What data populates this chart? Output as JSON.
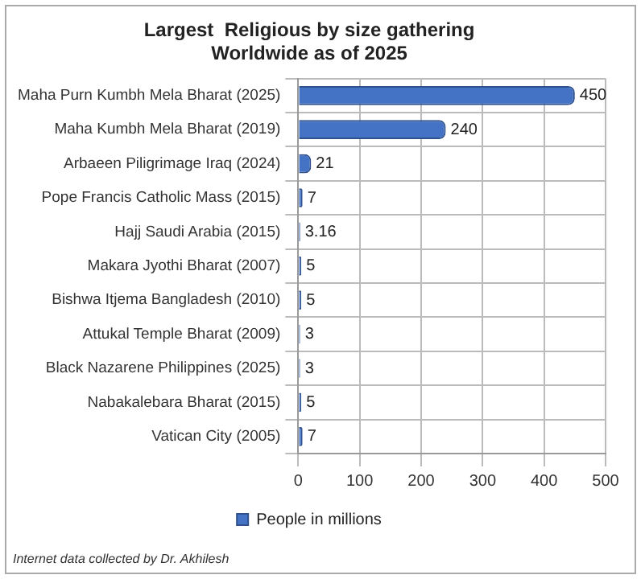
{
  "chart_data": {
    "type": "bar",
    "orientation": "horizontal",
    "title": "Largest  Religious by size gathering\nWorldwide as of 2025",
    "categories": [
      "Maha Purn Kumbh Mela Bharat (2025)",
      "Maha Kumbh Mela Bharat (2019)",
      "Arbaeen Piligrimage Iraq (2024)",
      "Pope Francis Catholic Mass (2015)",
      "Hajj Saudi Arabia (2015)",
      "Makara Jyothi Bharat (2007)",
      "Bishwa Itjema Bangladesh (2010)",
      "Attukal Temple Bharat (2009)",
      "Black Nazarene Philippines (2025)",
      "Nabakalebara Bharat (2015)",
      "Vatican City (2005)"
    ],
    "series": [
      {
        "name": "People in millions",
        "color": "#4472c4",
        "values": [
          450,
          240,
          21,
          7,
          3.16,
          5,
          5,
          3,
          3,
          5,
          7
        ]
      }
    ],
    "xlim": [
      0,
      500
    ],
    "xticks": [
      0,
      100,
      200,
      300,
      400,
      500
    ],
    "grid": true,
    "legend": "bottom",
    "data_labels": true,
    "annotations": [
      "Internet data collected by Dr. Akhilesh"
    ]
  }
}
